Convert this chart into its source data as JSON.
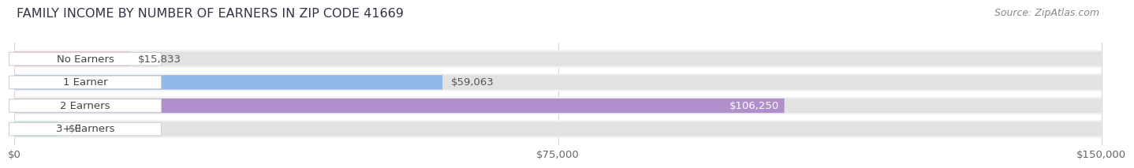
{
  "title": "FAMILY INCOME BY NUMBER OF EARNERS IN ZIP CODE 41669",
  "source": "Source: ZipAtlas.com",
  "categories": [
    "No Earners",
    "1 Earner",
    "2 Earners",
    "3+ Earners"
  ],
  "values": [
    15833,
    59063,
    106250,
    0
  ],
  "bar_colors": [
    "#f0a0a8",
    "#90b8e8",
    "#b090cc",
    "#78cece"
  ],
  "max_value": 150000,
  "x_ticks": [
    0,
    75000,
    150000
  ],
  "x_tick_labels": [
    "$0",
    "$75,000",
    "$150,000"
  ],
  "value_labels": [
    "$15,833",
    "$59,063",
    "$106,250",
    "$0"
  ],
  "title_fontsize": 11.5,
  "source_fontsize": 9,
  "tick_fontsize": 9.5,
  "bar_label_fontsize": 9.5,
  "value_label_fontsize": 9.5,
  "fig_bg_color": "#ffffff",
  "row_bg_color": "#f2f2f2",
  "track_color": "#e2e2e2",
  "label_box_color": "#ffffff",
  "label_box_edge": "#d0d0d0"
}
